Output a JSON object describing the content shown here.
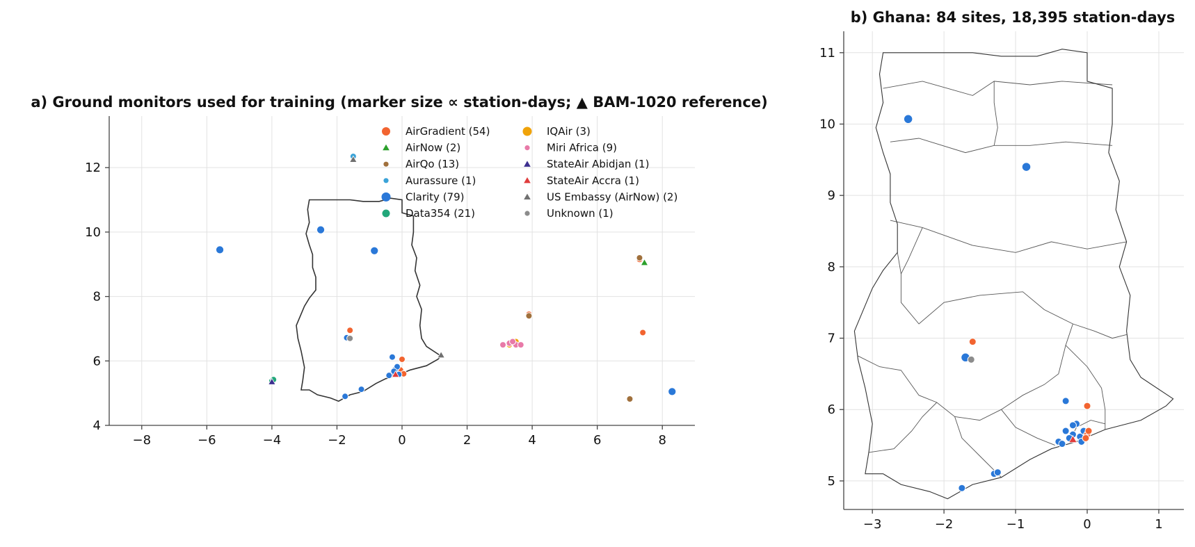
{
  "chart_data": [
    {
      "type": "scatter",
      "title": "a) Ground monitors used for training (marker size ∝ station-days; ▲ BAM-1020 reference)",
      "xlim": [
        -9,
        9
      ],
      "ylim": [
        4,
        13.6
      ],
      "xticks": [
        -8,
        -6,
        -4,
        -2,
        0,
        2,
        4,
        6,
        8
      ],
      "yticks": [
        4,
        6,
        8,
        10,
        12
      ],
      "xtick_labels": [
        "−8",
        "−6",
        "−4",
        "−2",
        "0",
        "2",
        "4",
        "6",
        "8"
      ],
      "ytick_labels": [
        "4",
        "6",
        "8",
        "10",
        "12"
      ],
      "grid": true,
      "legend_position": "upper-right",
      "ghana_outline": [
        [
          -3.1,
          5.1
        ],
        [
          -2.85,
          5.1
        ],
        [
          -2.6,
          4.95
        ],
        [
          -2.2,
          4.85
        ],
        [
          -1.95,
          4.75
        ],
        [
          -1.6,
          4.95
        ],
        [
          -1.2,
          5.05
        ],
        [
          -0.8,
          5.3
        ],
        [
          -0.5,
          5.45
        ],
        [
          -0.15,
          5.55
        ],
        [
          0.25,
          5.72
        ],
        [
          0.75,
          5.85
        ],
        [
          1.1,
          6.05
        ],
        [
          1.2,
          6.15
        ],
        [
          0.75,
          6.45
        ],
        [
          0.6,
          6.7
        ],
        [
          0.55,
          7.1
        ],
        [
          0.6,
          7.6
        ],
        [
          0.45,
          8.0
        ],
        [
          0.55,
          8.35
        ],
        [
          0.4,
          8.8
        ],
        [
          0.45,
          9.2
        ],
        [
          0.3,
          9.6
        ],
        [
          0.35,
          10.0
        ],
        [
          0.35,
          10.5
        ],
        [
          0.0,
          10.6
        ],
        [
          0.0,
          11.0
        ],
        [
          -0.35,
          11.05
        ],
        [
          -0.7,
          10.95
        ],
        [
          -1.2,
          10.95
        ],
        [
          -1.6,
          11.0
        ],
        [
          -2.0,
          11.0
        ],
        [
          -2.4,
          11.0
        ],
        [
          -2.85,
          11.0
        ],
        [
          -2.9,
          10.7
        ],
        [
          -2.85,
          10.3
        ],
        [
          -2.95,
          9.95
        ],
        [
          -2.85,
          9.6
        ],
        [
          -2.75,
          9.3
        ],
        [
          -2.75,
          8.9
        ],
        [
          -2.65,
          8.6
        ],
        [
          -2.65,
          8.2
        ],
        [
          -2.85,
          7.95
        ],
        [
          -3.0,
          7.7
        ],
        [
          -3.25,
          7.1
        ],
        [
          -3.2,
          6.7
        ],
        [
          -3.1,
          6.3
        ],
        [
          -3.0,
          5.8
        ],
        [
          -3.05,
          5.4
        ],
        [
          -3.1,
          5.1
        ]
      ],
      "series": [
        {
          "name": "AirGradient (54)",
          "color": "#f26430",
          "marker": "circle",
          "points": [
            [
              -1.6,
              6.95
            ],
            [
              0.0,
              6.05
            ],
            [
              3.9,
              7.45
            ],
            [
              7.4,
              6.88
            ],
            [
              0.0,
              5.65
            ],
            [
              -0.05,
              5.72
            ],
            [
              0.05,
              5.6
            ],
            [
              3.4,
              6.55
            ],
            [
              7.3,
              9.15
            ]
          ]
        },
        {
          "name": "AirNow (2)",
          "color": "#2ca02c",
          "marker": "triangle",
          "points": [
            [
              7.45,
              9.05
            ]
          ]
        },
        {
          "name": "AirQo (13)",
          "color": "#a0703c",
          "marker": "circle",
          "points": [
            [
              7.0,
              4.82
            ],
            [
              7.3,
              9.2
            ],
            [
              3.9,
              7.4
            ]
          ]
        },
        {
          "name": "Aurassure (1)",
          "color": "#3ba3d8",
          "marker": "circle",
          "points": [
            [
              -1.5,
              12.35
            ]
          ]
        },
        {
          "name": "Clarity (79)",
          "color": "#2a78d8",
          "marker": "circle",
          "points": [
            [
              -5.6,
              9.45
            ],
            [
              -2.5,
              10.07
            ],
            [
              -0.85,
              9.42
            ],
            [
              -1.7,
              6.72
            ],
            [
              -0.3,
              6.12
            ],
            [
              -1.75,
              4.9
            ],
            [
              -1.25,
              5.12
            ],
            [
              8.3,
              5.05
            ],
            [
              -0.2,
              5.75
            ],
            [
              -0.3,
              5.6
            ],
            [
              -0.1,
              5.58
            ],
            [
              -0.4,
              5.55
            ],
            [
              -0.15,
              5.82
            ],
            [
              -0.25,
              5.68
            ]
          ]
        },
        {
          "name": "Data354 (21)",
          "color": "#22a77a",
          "marker": "circle",
          "points": [
            [
              -4.0,
              5.38
            ],
            [
              -3.95,
              5.42
            ]
          ]
        },
        {
          "name": "IQAir (3)",
          "color": "#f0a30a",
          "marker": "circle",
          "points": [
            [
              3.3,
              6.5
            ],
            [
              3.5,
              6.6
            ]
          ]
        },
        {
          "name": "Miri Africa (9)",
          "color": "#e87aa8",
          "marker": "circle",
          "points": [
            [
              3.1,
              6.5
            ],
            [
              3.3,
              6.55
            ],
            [
              3.5,
              6.5
            ],
            [
              3.65,
              6.5
            ],
            [
              3.4,
              6.6
            ]
          ]
        },
        {
          "name": "StateAir Abidjan (1)",
          "color": "#3d2f8f",
          "marker": "triangle",
          "points": [
            [
              -4.0,
              5.35
            ]
          ]
        },
        {
          "name": "StateAir Accra (1)",
          "color": "#e03c3c",
          "marker": "triangle",
          "points": [
            [
              -0.2,
              5.58
            ]
          ]
        },
        {
          "name": "US Embassy (AirNow) (2)",
          "color": "#707070",
          "marker": "triangle",
          "points": [
            [
              -1.5,
              12.25
            ],
            [
              1.2,
              6.18
            ]
          ]
        },
        {
          "name": "Unknown (1)",
          "color": "#8c8c8c",
          "marker": "circle",
          "points": [
            [
              -1.6,
              6.7
            ]
          ]
        }
      ],
      "legend": [
        {
          "label": "AirGradient (54)",
          "color": "#f26430",
          "marker": "circle"
        },
        {
          "label": "AirNow (2)",
          "color": "#2ca02c",
          "marker": "triangle"
        },
        {
          "label": "AirQo (13)",
          "color": "#a0703c",
          "marker": "circle"
        },
        {
          "label": "Aurassure (1)",
          "color": "#3ba3d8",
          "marker": "circle"
        },
        {
          "label": "Clarity (79)",
          "color": "#2a78d8",
          "marker": "circle"
        },
        {
          "label": "Data354 (21)",
          "color": "#22a77a",
          "marker": "circle"
        },
        {
          "label": "IQAir (3)",
          "color": "#f0a30a",
          "marker": "circle"
        },
        {
          "label": "Miri Africa (9)",
          "color": "#e87aa8",
          "marker": "circle"
        },
        {
          "label": "StateAir Abidjan (1)",
          "color": "#3d2f8f",
          "marker": "triangle"
        },
        {
          "label": "StateAir Accra (1)",
          "color": "#e03c3c",
          "marker": "triangle"
        },
        {
          "label": "US Embassy (AirNow) (2)",
          "color": "#707070",
          "marker": "triangle"
        },
        {
          "label": "Unknown (1)",
          "color": "#8c8c8c",
          "marker": "circle"
        }
      ]
    },
    {
      "type": "scatter",
      "title": "b) Ghana: 84 sites, 18,395 station-days",
      "xlim": [
        -3.4,
        1.35
      ],
      "ylim": [
        4.6,
        11.3
      ],
      "xticks": [
        -3,
        -2,
        -1,
        0,
        1
      ],
      "yticks": [
        5,
        6,
        7,
        8,
        9,
        10,
        11
      ],
      "xtick_labels": [
        "−3",
        "−2",
        "−1",
        "0",
        "1"
      ],
      "ytick_labels": [
        "5",
        "6",
        "7",
        "8",
        "9",
        "10",
        "11"
      ],
      "grid": true,
      "ghana_outline": [
        [
          -3.1,
          5.1
        ],
        [
          -2.85,
          5.1
        ],
        [
          -2.6,
          4.95
        ],
        [
          -2.2,
          4.85
        ],
        [
          -1.95,
          4.75
        ],
        [
          -1.6,
          4.95
        ],
        [
          -1.2,
          5.05
        ],
        [
          -0.8,
          5.3
        ],
        [
          -0.5,
          5.45
        ],
        [
          -0.15,
          5.55
        ],
        [
          0.25,
          5.72
        ],
        [
          0.75,
          5.85
        ],
        [
          1.1,
          6.05
        ],
        [
          1.2,
          6.15
        ],
        [
          0.75,
          6.45
        ],
        [
          0.6,
          6.7
        ],
        [
          0.55,
          7.1
        ],
        [
          0.6,
          7.6
        ],
        [
          0.45,
          8.0
        ],
        [
          0.55,
          8.35
        ],
        [
          0.4,
          8.8
        ],
        [
          0.45,
          9.2
        ],
        [
          0.3,
          9.6
        ],
        [
          0.35,
          10.0
        ],
        [
          0.35,
          10.5
        ],
        [
          0.0,
          10.6
        ],
        [
          0.0,
          11.0
        ],
        [
          -0.35,
          11.05
        ],
        [
          -0.7,
          10.95
        ],
        [
          -1.2,
          10.95
        ],
        [
          -1.6,
          11.0
        ],
        [
          -2.0,
          11.0
        ],
        [
          -2.4,
          11.0
        ],
        [
          -2.85,
          11.0
        ],
        [
          -2.9,
          10.7
        ],
        [
          -2.85,
          10.3
        ],
        [
          -2.95,
          9.95
        ],
        [
          -2.85,
          9.6
        ],
        [
          -2.75,
          9.3
        ],
        [
          -2.75,
          8.9
        ],
        [
          -2.65,
          8.6
        ],
        [
          -2.65,
          8.2
        ],
        [
          -2.85,
          7.95
        ],
        [
          -3.0,
          7.7
        ],
        [
          -3.25,
          7.1
        ],
        [
          -3.2,
          6.7
        ],
        [
          -3.1,
          6.3
        ],
        [
          -3.0,
          5.8
        ],
        [
          -3.05,
          5.4
        ],
        [
          -3.1,
          5.1
        ]
      ],
      "region_lines": [
        [
          [
            -2.85,
            10.5
          ],
          [
            -2.3,
            10.6
          ],
          [
            -1.6,
            10.4
          ],
          [
            -1.3,
            10.6
          ],
          [
            -0.8,
            10.55
          ],
          [
            -0.35,
            10.6
          ],
          [
            0.35,
            10.55
          ]
        ],
        [
          [
            -2.75,
            9.75
          ],
          [
            -2.35,
            9.8
          ],
          [
            -1.7,
            9.6
          ],
          [
            -1.3,
            9.7
          ],
          [
            -0.8,
            9.7
          ],
          [
            -0.3,
            9.75
          ],
          [
            0.35,
            9.7
          ]
        ],
        [
          [
            -1.3,
            10.6
          ],
          [
            -1.3,
            10.3
          ],
          [
            -1.25,
            9.95
          ],
          [
            -1.3,
            9.7
          ]
        ],
        [
          [
            -2.75,
            8.65
          ],
          [
            -2.3,
            8.55
          ],
          [
            -1.6,
            8.3
          ],
          [
            -1.0,
            8.2
          ],
          [
            -0.5,
            8.35
          ],
          [
            0.0,
            8.25
          ],
          [
            0.55,
            8.35
          ]
        ],
        [
          [
            -2.65,
            8.2
          ],
          [
            -2.6,
            7.9
          ],
          [
            -2.6,
            7.5
          ],
          [
            -2.35,
            7.2
          ],
          [
            -2.0,
            7.5
          ],
          [
            -1.5,
            7.6
          ],
          [
            -0.9,
            7.65
          ],
          [
            -0.6,
            7.4
          ],
          [
            -0.2,
            7.2
          ],
          [
            0.1,
            7.1
          ],
          [
            0.35,
            7.0
          ],
          [
            0.55,
            7.05
          ]
        ],
        [
          [
            -2.3,
            8.55
          ],
          [
            -2.5,
            8.1
          ],
          [
            -2.6,
            7.9
          ]
        ],
        [
          [
            -3.2,
            6.75
          ],
          [
            -2.9,
            6.6
          ],
          [
            -2.6,
            6.55
          ],
          [
            -2.35,
            6.2
          ],
          [
            -2.1,
            6.1
          ],
          [
            -1.85,
            5.9
          ],
          [
            -1.5,
            5.85
          ],
          [
            -1.2,
            6.0
          ],
          [
            -0.9,
            6.2
          ],
          [
            -0.6,
            6.35
          ],
          [
            -0.4,
            6.5
          ],
          [
            -0.3,
            6.9
          ],
          [
            -0.2,
            7.2
          ]
        ],
        [
          [
            -3.05,
            5.4
          ],
          [
            -2.7,
            5.45
          ],
          [
            -2.45,
            5.7
          ],
          [
            -2.3,
            5.9
          ],
          [
            -2.1,
            6.1
          ]
        ],
        [
          [
            -1.85,
            5.9
          ],
          [
            -1.75,
            5.6
          ],
          [
            -1.5,
            5.35
          ],
          [
            -1.2,
            5.05
          ]
        ],
        [
          [
            -1.2,
            6.0
          ],
          [
            -1.0,
            5.75
          ],
          [
            -0.7,
            5.6
          ],
          [
            -0.45,
            5.5
          ]
        ],
        [
          [
            -0.3,
            6.9
          ],
          [
            0.0,
            6.6
          ],
          [
            0.2,
            6.3
          ],
          [
            0.25,
            6.0
          ],
          [
            0.25,
            5.72
          ]
        ],
        [
          [
            -0.25,
            5.55
          ],
          [
            -0.15,
            5.75
          ],
          [
            0.05,
            5.85
          ],
          [
            0.25,
            5.8
          ]
        ]
      ],
      "series": [
        {
          "name": "Clarity",
          "color": "#2a78d8",
          "marker": "circle",
          "points": [
            [
              -2.5,
              10.07
            ],
            [
              -0.85,
              9.4
            ],
            [
              -1.7,
              6.73
            ],
            [
              -0.3,
              6.12
            ],
            [
              -1.75,
              4.9
            ],
            [
              -1.3,
              5.1
            ],
            [
              -1.25,
              5.12
            ],
            [
              -0.3,
              5.7
            ],
            [
              -0.2,
              5.65
            ],
            [
              -0.1,
              5.62
            ],
            [
              -0.4,
              5.55
            ],
            [
              -0.05,
              5.7
            ],
            [
              -0.15,
              5.8
            ],
            [
              -0.25,
              5.6
            ],
            [
              -0.35,
              5.52
            ],
            [
              -0.2,
              5.78
            ],
            [
              -0.08,
              5.55
            ]
          ]
        },
        {
          "name": "AirGradient",
          "color": "#f26430",
          "marker": "circle",
          "points": [
            [
              -1.6,
              6.95
            ],
            [
              0.0,
              6.05
            ],
            [
              0.0,
              5.65
            ],
            [
              0.02,
              5.7
            ],
            [
              -0.02,
              5.6
            ]
          ]
        },
        {
          "name": "Unknown",
          "color": "#8c8c8c",
          "marker": "circle",
          "points": [
            [
              -1.62,
              6.7
            ]
          ]
        },
        {
          "name": "StateAir Accra",
          "color": "#e03c3c",
          "marker": "triangle",
          "points": [
            [
              -0.2,
              5.58
            ]
          ]
        }
      ]
    }
  ]
}
